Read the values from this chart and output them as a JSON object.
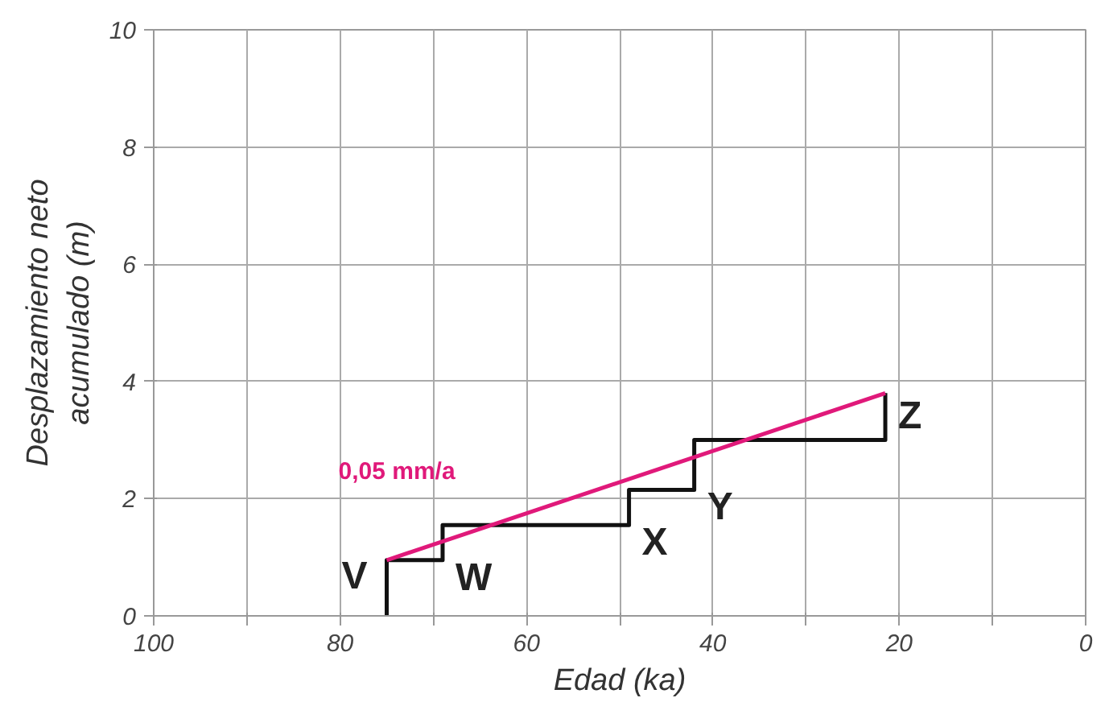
{
  "chart_data": {
    "type": "line",
    "xlabel": "Edad (ka)",
    "ylabel": "Desplazamiento neto acumulado (m)",
    "xlim": [
      100,
      0
    ],
    "ylim": [
      0,
      10
    ],
    "xticks": [
      100,
      {
        "value": 90,
        "label": null
      },
      80,
      {
        "value": 70,
        "label": null
      },
      60,
      {
        "value": 50,
        "label": null
      },
      40,
      {
        "value": 30,
        "label": null
      },
      20,
      {
        "value": 10,
        "label": null
      },
      0
    ],
    "yticks": [
      0,
      2,
      4,
      6,
      8,
      10
    ],
    "grid": true,
    "marker": "none",
    "line_style": "solid",
    "series": [
      {
        "color": "#111111",
        "x": [
          75,
          75,
          69,
          69,
          49,
          49,
          42,
          42,
          21.5,
          21.5
        ],
        "values": [
          0,
          0.95,
          0.95,
          1.55,
          1.55,
          2.15,
          2.15,
          3.0,
          3.0,
          3.8
        ]
      },
      {
        "color": "#e0197a",
        "x": [
          75,
          21.5
        ],
        "values": [
          0.95,
          3.8
        ]
      }
    ],
    "annotations": [
      "V",
      "W",
      "X",
      "Y",
      "Z",
      "0,05 mm/a"
    ]
  }
}
